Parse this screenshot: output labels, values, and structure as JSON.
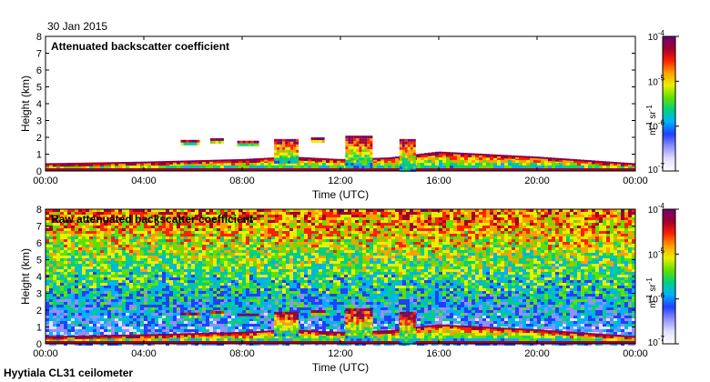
{
  "date_label": "30 Jan 2015",
  "footer_label": "Hyytiala CL31 ceilometer",
  "colorbar": {
    "unit_base": "m",
    "unit_exp1": "-1",
    "unit_mid": " sr",
    "unit_exp2": "-1",
    "tick_base": "10",
    "tick_exponents": [
      "-4",
      "-5",
      "-6",
      "-7"
    ],
    "colors": [
      "#ffffff",
      "#e0e0ff",
      "#9090ff",
      "#2040ff",
      "#00b0ff",
      "#00d080",
      "#60e000",
      "#e8f000",
      "#ffa000",
      "#ff2000",
      "#a00030",
      "#700070"
    ]
  },
  "chart_data": [
    {
      "type": "heatmap",
      "title": "Attenuated backscatter coefficient",
      "xlabel": "Time (UTC)",
      "ylabel": "Height (km)",
      "xlim_hours": [
        0,
        24
      ],
      "ylim": [
        0,
        8
      ],
      "x_ticks": [
        "00:00",
        "04:00",
        "08:00",
        "12:00",
        "16:00",
        "20:00",
        "00:00"
      ],
      "y_ticks": [
        "0",
        "1",
        "2",
        "3",
        "4",
        "5",
        "6",
        "7",
        "8"
      ],
      "color_scale": "log",
      "clim": [
        1e-07,
        0.0001
      ],
      "features": {
        "boundary_layer_top_km": [
          [
            0,
            0.35
          ],
          [
            4,
            0.45
          ],
          [
            8,
            0.6
          ],
          [
            10,
            0.75
          ],
          [
            12,
            0.6
          ],
          [
            14,
            0.7
          ],
          [
            16,
            1.05
          ],
          [
            18,
            0.9
          ],
          [
            20,
            0.75
          ],
          [
            24,
            0.35
          ]
        ],
        "cloud_patches": [
          {
            "start_hour": 5.5,
            "end_hour": 6.2,
            "base_km": 1.6,
            "top_km": 1.85
          },
          {
            "start_hour": 6.7,
            "end_hour": 7.2,
            "base_km": 1.7,
            "top_km": 1.95
          },
          {
            "start_hour": 7.8,
            "end_hour": 8.6,
            "base_km": 1.6,
            "top_km": 1.8
          },
          {
            "start_hour": 9.3,
            "end_hour": 10.3,
            "base_km": 0.5,
            "top_km": 1.9
          },
          {
            "start_hour": 10.8,
            "end_hour": 11.3,
            "base_km": 1.7,
            "top_km": 2.0
          },
          {
            "start_hour": 12.2,
            "end_hour": 13.3,
            "base_km": 0.2,
            "top_km": 2.1
          },
          {
            "start_hour": 14.4,
            "end_hour": 15.0,
            "base_km": 0.0,
            "top_km": 1.9
          }
        ]
      }
    },
    {
      "type": "heatmap",
      "title": "Raw attenuated backscatter coefficient",
      "xlabel": "Time (UTC)",
      "ylabel": "Height (km)",
      "xlim_hours": [
        0,
        24
      ],
      "ylim": [
        0,
        8
      ],
      "x_ticks": [
        "00:00",
        "04:00",
        "08:00",
        "12:00",
        "16:00",
        "20:00",
        "00:00"
      ],
      "y_ticks": [
        "0",
        "1",
        "2",
        "3",
        "4",
        "5",
        "6",
        "7",
        "8"
      ],
      "color_scale": "log",
      "clim": [
        1e-07,
        0.0001
      ],
      "features": {
        "noise_background": "increasing with height",
        "boundary_layer_top_km": [
          [
            0,
            0.35
          ],
          [
            4,
            0.45
          ],
          [
            8,
            0.6
          ],
          [
            10,
            0.75
          ],
          [
            12,
            0.6
          ],
          [
            14,
            0.7
          ],
          [
            16,
            1.05
          ],
          [
            18,
            0.9
          ],
          [
            20,
            0.75
          ],
          [
            24,
            0.35
          ]
        ]
      }
    }
  ]
}
